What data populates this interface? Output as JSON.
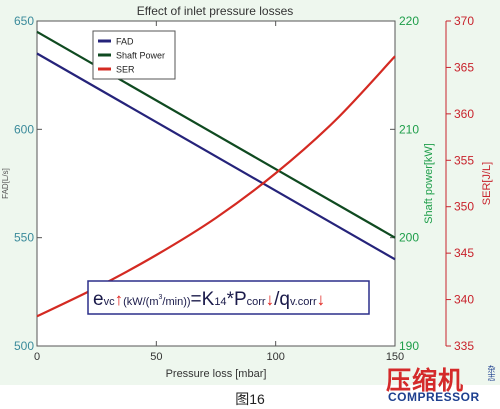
{
  "chart_data": {
    "type": "line",
    "title": "Effect of inlet pressure losses",
    "xlabel": "Pressure loss [mbar]",
    "x_ticks": [
      "0",
      "50",
      "100",
      "150"
    ],
    "xlim": [
      0,
      150
    ],
    "axes": [
      {
        "key": "fad",
        "label": "FAD[L/s]",
        "lim": [
          500,
          650
        ],
        "ticks": [
          "500",
          "550",
          "600",
          "650"
        ],
        "color": "#3b8b9b"
      },
      {
        "key": "power",
        "label": "Shaft power[kW]",
        "lim": [
          190,
          220
        ],
        "ticks": [
          "190",
          "200",
          "210",
          "220"
        ],
        "color": "#1e9e4a"
      },
      {
        "key": "ser",
        "label": "SER[J/L]",
        "lim": [
          335,
          370
        ],
        "ticks": [
          "335",
          "340",
          "345",
          "350",
          "355",
          "360",
          "365",
          "370"
        ],
        "color": "#c8232c"
      }
    ],
    "series": [
      {
        "name": "FAD",
        "axis": "fad",
        "color": "#25237a",
        "x": [
          0,
          150
        ],
        "y": [
          635,
          540
        ]
      },
      {
        "name": "Shaft Power",
        "axis": "power",
        "color": "#0f4a20",
        "x": [
          0,
          150
        ],
        "y": [
          219,
          200
        ]
      },
      {
        "name": "SER",
        "axis": "ser",
        "color": "#d42a22",
        "x": [
          0,
          25,
          50,
          75,
          100,
          125,
          150
        ],
        "y": [
          338.2,
          341.3,
          344.8,
          348.8,
          353.6,
          359.3,
          366.2
        ]
      }
    ],
    "legend_position": "top-left",
    "grid": false,
    "annotation": {
      "parts": [
        {
          "t": "e",
          "style": "normal"
        },
        {
          "t": "vc",
          "style": "sub"
        },
        {
          "t": "↑",
          "style": "arrow"
        },
        {
          "t": "(kW/(m",
          "style": "sub"
        },
        {
          "t": "3",
          "style": "supsmall"
        },
        {
          "t": "/min))",
          "style": "sub"
        },
        {
          "t": "=K",
          "style": "normal"
        },
        {
          "t": "14",
          "style": "sub"
        },
        {
          "t": "*P",
          "style": "normal"
        },
        {
          "t": "corr",
          "style": "sub"
        },
        {
          "t": "↓",
          "style": "arrow"
        },
        {
          "t": "/q",
          "style": "normal"
        },
        {
          "t": "v.corr",
          "style": "sub"
        },
        {
          "t": "↓",
          "style": "arrow"
        }
      ]
    }
  },
  "caption": "图16",
  "logo": {
    "cn": "压缩机",
    "en": "COMPRESSOR",
    "side": "杂志"
  }
}
